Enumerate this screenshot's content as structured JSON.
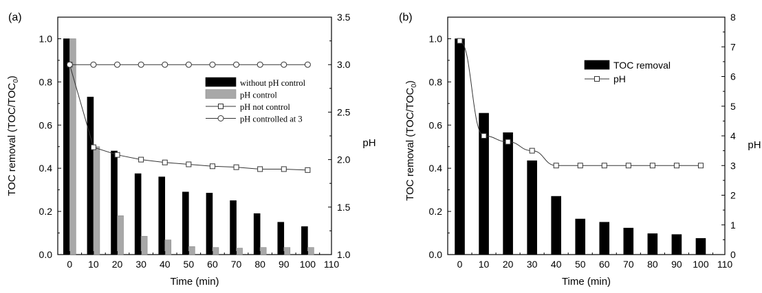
{
  "chart_data": [
    {
      "panel_label": "(a)",
      "type": "bar+line",
      "xlabel": "Time (min)",
      "ylabel": "TOC removal (TOC/TOC0)",
      "ylabel_main": "TOC removal (TOC/TOC",
      "ylabel_sub": "0",
      "ylabel_close": ")",
      "y2label": "pH",
      "xlim": [
        -5,
        110
      ],
      "ylim": [
        0,
        1.1
      ],
      "y2lim": [
        1.0,
        3.5
      ],
      "xticks": [
        0,
        10,
        20,
        30,
        40,
        50,
        60,
        70,
        80,
        90,
        100,
        110
      ],
      "yticks": [
        0.0,
        0.2,
        0.4,
        0.6,
        0.8,
        1.0
      ],
      "y2ticks": [
        1.0,
        1.5,
        2.0,
        2.5,
        3.0,
        3.5
      ],
      "legend_position": "right",
      "bar_series": [
        {
          "name": "without pH control",
          "color": "#000000",
          "x": [
            0,
            10,
            20,
            30,
            40,
            50,
            60,
            70,
            80,
            90,
            100
          ],
          "values": [
            1.0,
            0.73,
            0.48,
            0.375,
            0.36,
            0.29,
            0.285,
            0.25,
            0.19,
            0.15,
            0.13
          ]
        },
        {
          "name": "pH control",
          "color": "#a8a8a8",
          "x": [
            0,
            10,
            20,
            30,
            40,
            50,
            60,
            70,
            80,
            90,
            100
          ],
          "values": [
            1.0,
            0.5,
            0.18,
            0.085,
            0.068,
            0.037,
            0.033,
            0.03,
            0.033,
            0.033,
            0.033
          ]
        }
      ],
      "line_series": [
        {
          "name": "pH not control",
          "marker": "square",
          "x": [
            0,
            10,
            20,
            30,
            40,
            50,
            60,
            70,
            80,
            90,
            100
          ],
          "values": [
            3.0,
            2.13,
            2.05,
            2.0,
            1.97,
            1.95,
            1.93,
            1.92,
            1.9,
            1.9,
            1.89
          ]
        },
        {
          "name": "pH controlled at 3",
          "marker": "circle",
          "x": [
            0,
            10,
            20,
            30,
            40,
            50,
            60,
            70,
            80,
            90,
            100
          ],
          "values": [
            3.0,
            3.0,
            3.0,
            3.0,
            3.0,
            3.0,
            3.0,
            3.0,
            3.0,
            3.0,
            3.0
          ]
        }
      ]
    },
    {
      "panel_label": "(b)",
      "type": "bar+line",
      "xlabel": "Time (min)",
      "ylabel": "TOC removal (TOC/TOC0)",
      "ylabel_main": "TOC removal (TOC/TOC",
      "ylabel_sub": "0",
      "ylabel_close": ")",
      "y2label": "pH",
      "xlim": [
        -5,
        110
      ],
      "ylim": [
        0,
        1.1
      ],
      "y2lim": [
        0,
        8
      ],
      "xticks": [
        0,
        10,
        20,
        30,
        40,
        50,
        60,
        70,
        80,
        90,
        100,
        110
      ],
      "yticks": [
        0.0,
        0.2,
        0.4,
        0.6,
        0.8,
        1.0
      ],
      "y2ticks": [
        0,
        1,
        2,
        3,
        4,
        5,
        6,
        7,
        8
      ],
      "legend_position": "top-right",
      "bar_series": [
        {
          "name": "TOC removal",
          "color": "#000000",
          "x": [
            0,
            10,
            20,
            30,
            40,
            50,
            60,
            70,
            80,
            90,
            100
          ],
          "values": [
            1.0,
            0.655,
            0.565,
            0.435,
            0.27,
            0.165,
            0.15,
            0.123,
            0.097,
            0.093,
            0.075
          ]
        }
      ],
      "line_series": [
        {
          "name": "pH",
          "marker": "square",
          "x": [
            0,
            10,
            20,
            30,
            40,
            50,
            60,
            70,
            80,
            90,
            100
          ],
          "values": [
            7.2,
            4.0,
            3.8,
            3.5,
            3.0,
            3.0,
            3.0,
            3.0,
            3.0,
            3.0,
            3.0
          ]
        }
      ]
    }
  ]
}
